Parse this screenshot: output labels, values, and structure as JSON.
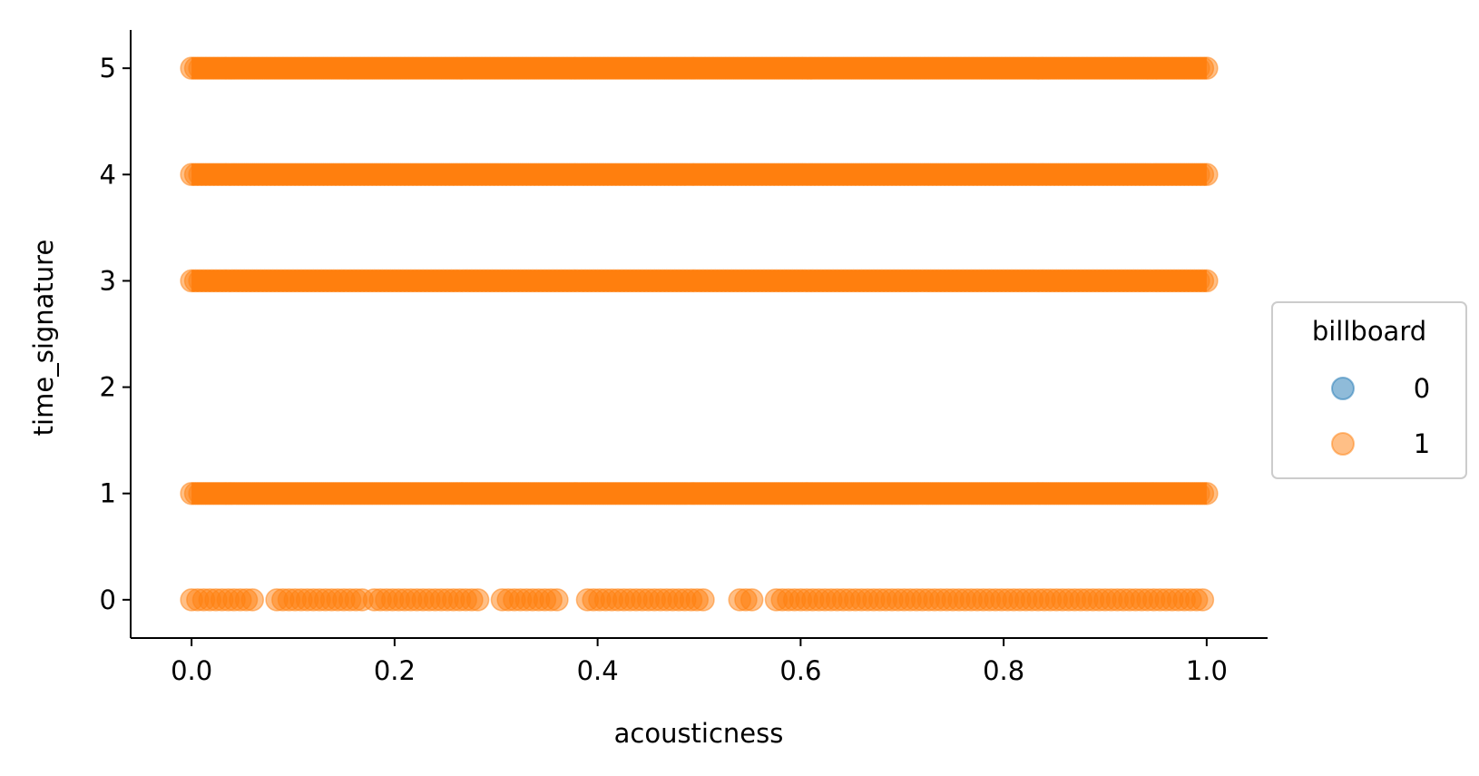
{
  "chart_data": {
    "type": "scatter",
    "title": "",
    "xlabel": "acousticness",
    "ylabel": "time_signature",
    "xlim": [
      -0.06,
      1.06
    ],
    "ylim": [
      -0.36,
      5.36
    ],
    "xticks": [
      0.0,
      0.2,
      0.4,
      0.6,
      0.8,
      1.0
    ],
    "xtick_labels": [
      "0.0",
      "0.2",
      "0.4",
      "0.6",
      "0.8",
      "1.0"
    ],
    "yticks": [
      0,
      1,
      2,
      3,
      4,
      5
    ],
    "ytick_labels": [
      "0",
      "1",
      "2",
      "3",
      "4",
      "5"
    ],
    "grid": false,
    "legend": {
      "title": "billboard",
      "placement": "center-right-outside",
      "entries": [
        {
          "label": "0",
          "color": "#1f77b4"
        },
        {
          "label": "1",
          "color": "#ff7f0e"
        }
      ]
    },
    "series": [
      {
        "name": "1",
        "color": "#ff7f0e",
        "bands": [
          {
            "y": 5,
            "x_range": [
              0.0,
              1.0
            ],
            "density": "continuous"
          },
          {
            "y": 4,
            "x_range": [
              0.0,
              1.0
            ],
            "density": "continuous"
          },
          {
            "y": 3,
            "x_range": [
              0.0,
              1.0
            ],
            "density": "continuous"
          },
          {
            "y": 1,
            "x_range": [
              0.0,
              1.0
            ],
            "density": "continuous"
          },
          {
            "y": 0,
            "x_range": [
              0.0,
              1.0
            ],
            "density": "sparse",
            "gaps": [
              [
                0.06,
                0.08
              ],
              [
                0.17,
                0.18
              ],
              [
                0.285,
                0.305
              ],
              [
                0.365,
                0.39
              ],
              [
                0.51,
                0.54
              ],
              [
                0.555,
                0.575
              ]
            ]
          }
        ]
      },
      {
        "name": "0",
        "color": "#1f77b4",
        "bands": []
      }
    ]
  }
}
